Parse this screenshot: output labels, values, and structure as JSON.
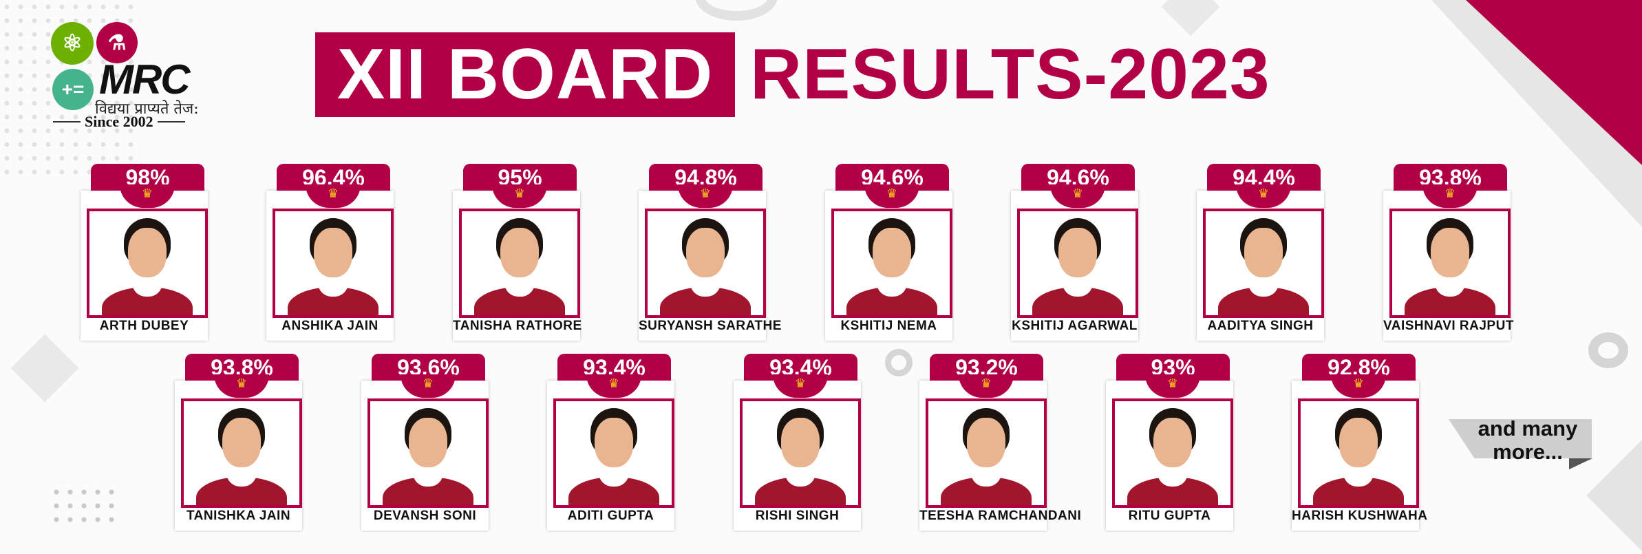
{
  "brand": {
    "name": "MRC",
    "motto": "विद्यया प्राप्यते तेज:",
    "since": "Since 2002",
    "logo_icons": [
      "atom-icon",
      "flask-icon",
      "math-symbols-icon"
    ]
  },
  "title": {
    "highlight": "XII BOARD",
    "rest": "RESULTS-2023"
  },
  "colors": {
    "brand": "#b20046",
    "crown": "#f7c21a"
  },
  "row1": [
    {
      "percent": "98%",
      "name": "ARTH DUBEY"
    },
    {
      "percent": "96.4%",
      "name": "ANSHIKA JAIN"
    },
    {
      "percent": "95%",
      "name": "TANISHA RATHORE"
    },
    {
      "percent": "94.8%",
      "name": "SURYANSH SARATHE"
    },
    {
      "percent": "94.6%",
      "name": "KSHITIJ NEMA"
    },
    {
      "percent": "94.6%",
      "name": "KSHITIJ AGARWAL"
    },
    {
      "percent": "94.4%",
      "name": "AADITYA SINGH"
    },
    {
      "percent": "93.8%",
      "name": "VAISHNAVI RAJPUT"
    }
  ],
  "row2": [
    {
      "percent": "93.8%",
      "name": "TANISHKA JAIN"
    },
    {
      "percent": "93.6%",
      "name": "DEVANSH SONI"
    },
    {
      "percent": "93.4%",
      "name": "ADITI GUPTA"
    },
    {
      "percent": "93.4%",
      "name": "RISHI SINGH"
    },
    {
      "percent": "93.2%",
      "name": "TEESHA RAMCHANDANI"
    },
    {
      "percent": "93%",
      "name": "RITU GUPTA"
    },
    {
      "percent": "92.8%",
      "name": "HARISH KUSHWAHA"
    }
  ],
  "more_label": "and many more..."
}
